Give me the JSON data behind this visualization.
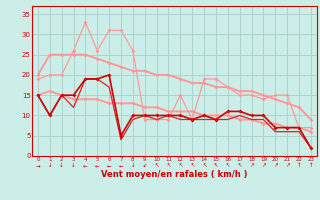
{
  "xlabel": "Vent moyen/en rafales ( km/h )",
  "bg_color": "#cceee8",
  "grid_color": "#aad4ce",
  "x": [
    0,
    1,
    2,
    3,
    4,
    5,
    6,
    7,
    8,
    9,
    10,
    11,
    12,
    13,
    14,
    15,
    16,
    17,
    18,
    19,
    20,
    21,
    22,
    23
  ],
  "series": [
    {
      "y": [
        19,
        20,
        20,
        26,
        33,
        26,
        31,
        31,
        26,
        9,
        9,
        9,
        15,
        9,
        19,
        19,
        17,
        15,
        15,
        14,
        15,
        15,
        7,
        7
      ],
      "color": "#ff9999",
      "linewidth": 0.9,
      "marker": "D",
      "markersize": 2.0,
      "zorder": 3
    },
    {
      "y": [
        20,
        25,
        25,
        25,
        25,
        24,
        23,
        22,
        21,
        21,
        20,
        20,
        19,
        18,
        18,
        17,
        17,
        16,
        16,
        15,
        14,
        13,
        12,
        9
      ],
      "color": "#ff9999",
      "linewidth": 1.4,
      "marker": "D",
      "markersize": 2.0,
      "zorder": 2
    },
    {
      "y": [
        15,
        16,
        15,
        14,
        14,
        14,
        13,
        13,
        13,
        12,
        12,
        11,
        11,
        11,
        10,
        10,
        10,
        9,
        9,
        8,
        8,
        7,
        7,
        6
      ],
      "color": "#ff9999",
      "linewidth": 1.4,
      "marker": "D",
      "markersize": 2.0,
      "zorder": 2
    },
    {
      "y": [
        15,
        10,
        15,
        15,
        19,
        19,
        20,
        5,
        10,
        10,
        10,
        10,
        10,
        9,
        10,
        9,
        11,
        11,
        10,
        10,
        7,
        7,
        7,
        2
      ],
      "color": "#cc0000",
      "linewidth": 1.2,
      "marker": "D",
      "markersize": 2.0,
      "zorder": 5
    },
    {
      "y": [
        15,
        10,
        15,
        12,
        19,
        19,
        17,
        4,
        9,
        10,
        9,
        10,
        9,
        9,
        9,
        9,
        9,
        10,
        9,
        9,
        6,
        6,
        6,
        2
      ],
      "color": "#dd2222",
      "linewidth": 0.9,
      "marker": null,
      "markersize": 0,
      "zorder": 4
    }
  ],
  "ylim": [
    0,
    37
  ],
  "yticks": [
    0,
    5,
    10,
    15,
    20,
    25,
    30,
    35
  ],
  "xlim": [
    -0.5,
    23.5
  ],
  "wind_arrows": [
    "→",
    "↓",
    "↓",
    "↓",
    "←",
    "←",
    "←",
    "←",
    "↓",
    "↙",
    "↖",
    "↖",
    "↖",
    "↖",
    "↖",
    "↖",
    "↖",
    "↖",
    "↗",
    "↗",
    "↗",
    "↗",
    "↑",
    "↑"
  ]
}
